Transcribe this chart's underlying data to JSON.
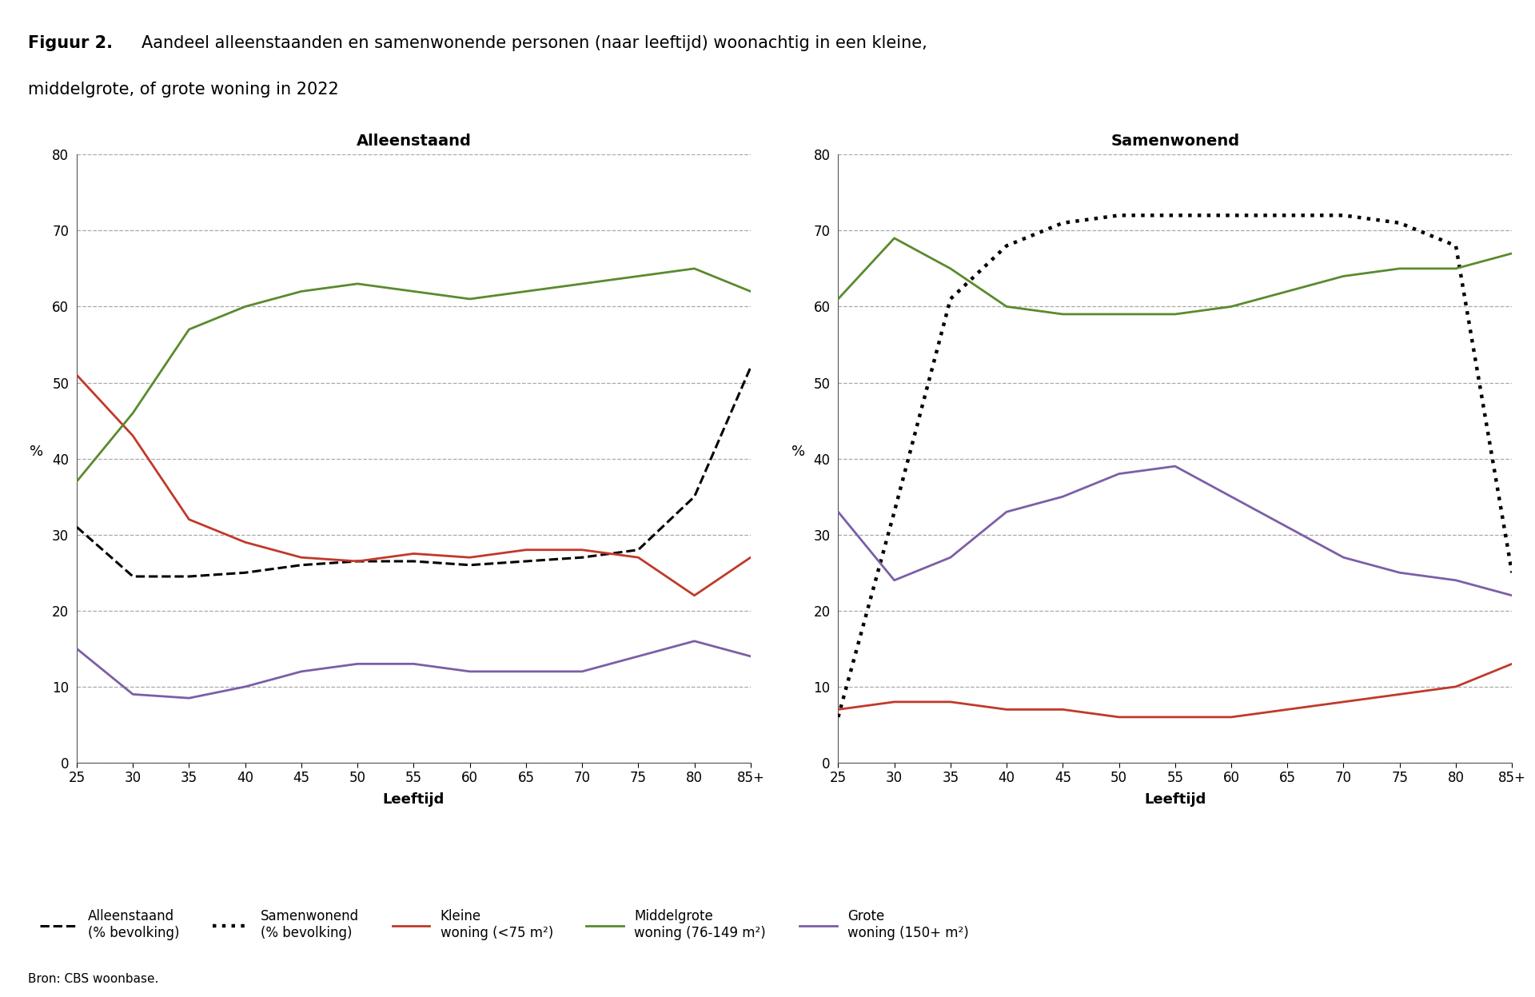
{
  "title_bold": "Figuur 2.",
  "title_rest": "Aandeel alleenstaanden en samenwonende personen (naar leeftijd) woonachtig in een kleine,\nmiddelgrote, of grote woning in 2022",
  "subtitle_left": "Alleenstaand",
  "subtitle_right": "Samenwonend",
  "xlabel": "Leeftijd",
  "ylabel": "%",
  "source": "Bron: CBS woonbase.",
  "x_labels": [
    "25",
    "30",
    "35",
    "40",
    "45",
    "50",
    "55",
    "60",
    "65",
    "70",
    "75",
    "80",
    "85+"
  ],
  "x_values": [
    25,
    30,
    35,
    40,
    45,
    50,
    55,
    60,
    65,
    70,
    75,
    80,
    85
  ],
  "ylim": [
    0,
    80
  ],
  "yticks": [
    0,
    10,
    20,
    30,
    40,
    50,
    60,
    70,
    80
  ],
  "alleenstaand_pct": [
    31,
    24.5,
    24.5,
    25,
    26,
    26.5,
    26.5,
    26,
    26.5,
    27,
    28,
    35,
    52
  ],
  "alleenstaand_klein": [
    51,
    43,
    32,
    29,
    27,
    26.5,
    27.5,
    27,
    28,
    28,
    27,
    22,
    27
  ],
  "alleenstaand_middel": [
    37,
    46,
    57,
    60,
    62,
    63,
    62,
    61,
    62,
    63,
    64,
    65,
    62
  ],
  "alleenstaand_groot": [
    15,
    9,
    8.5,
    10,
    12,
    13,
    13,
    12,
    12,
    12,
    14,
    16,
    14
  ],
  "samenwonend_pct": [
    6,
    33,
    61,
    68,
    71,
    72,
    72,
    72,
    72,
    72,
    71,
    68,
    25
  ],
  "samenwonend_klein": [
    7,
    8,
    8,
    7,
    7,
    6,
    6,
    6,
    7,
    8,
    9,
    10,
    13
  ],
  "samenwonend_middel": [
    61,
    69,
    65,
    60,
    59,
    59,
    59,
    60,
    62,
    64,
    65,
    65,
    67
  ],
  "samenwonend_groot": [
    33,
    24,
    27,
    33,
    35,
    38,
    39,
    35,
    31,
    27,
    25,
    24,
    22
  ],
  "color_dashed_black": "#000000",
  "color_dotted_black": "#000000",
  "color_red": "#c0392b",
  "color_green": "#5a8a2e",
  "color_purple": "#7b5ea7",
  "background_color": "#ffffff"
}
